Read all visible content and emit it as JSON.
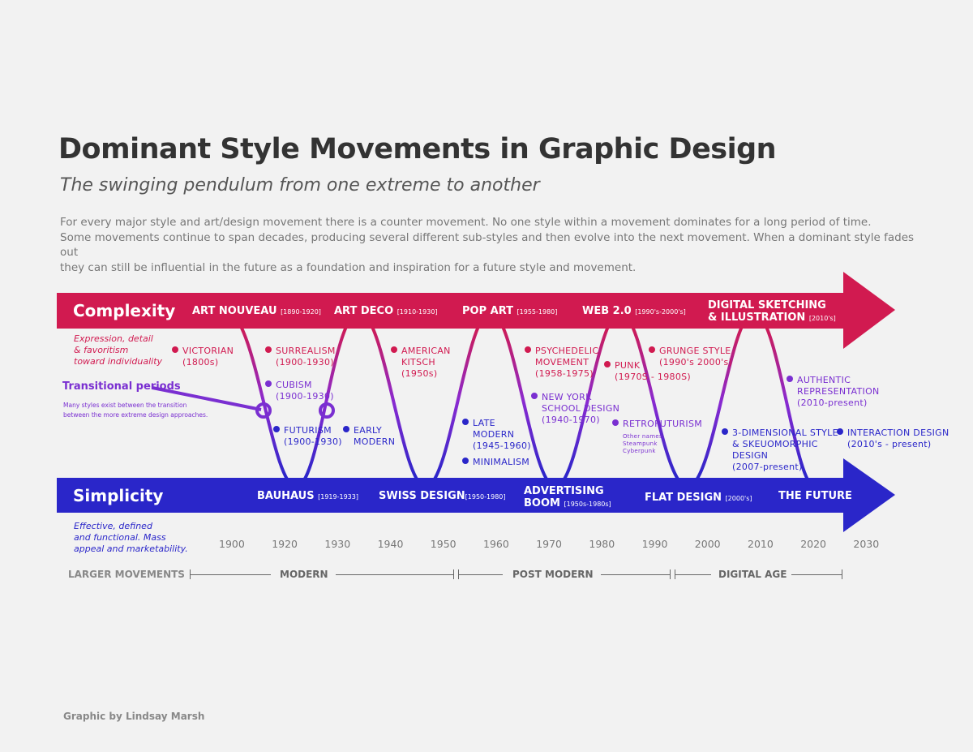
{
  "title": "Dominant Style Movements in Graphic Design",
  "subtitle": "The swinging pendulum from one extreme to another",
  "intro": [
    "For every major style and art/design movement there is a counter movement. No one style within a movement dominates for a long period of time.",
    "Some movements continue to span decades, producing several different sub-styles and then evolve into the next movement. When a dominant style fades out",
    "they can still be influential in the future as a foundation and inspiration for a future style and movement."
  ],
  "colors": {
    "complexity": "#d11a50",
    "simplicity": "#2a26c9",
    "transitional": "#7a2fd1",
    "background": "#f2f2f2"
  },
  "complexity": {
    "label": "Complexity",
    "desc": [
      "Expression, detail",
      "& favoritism",
      "toward individuality"
    ],
    "movements": [
      {
        "name": "ART NOUVEAU",
        "years": "[1890-1920]"
      },
      {
        "name": "ART DECO",
        "years": "[1910-1930]"
      },
      {
        "name": "POP ART",
        "years": "[1955-1980]"
      },
      {
        "name": "WEB 2.0",
        "years": "[1990's-2000's]"
      },
      {
        "name": "DIGITAL SKETCHING",
        "name2": "& ILLUSTRATION",
        "years": "[2010's]"
      }
    ]
  },
  "simplicity": {
    "label": "Simplicity",
    "desc": [
      "Effective, defined",
      "and functional. Mass",
      "appeal and marketability."
    ],
    "movements": [
      {
        "name": "BAUHAUS",
        "years": "[1919-1933]"
      },
      {
        "name": "SWISS DESIGN",
        "years": "[1950-1980]"
      },
      {
        "name": "ADVERTISING",
        "name2": "BOOM",
        "years": "[1950s-1980s]"
      },
      {
        "name": "FLAT DESIGN",
        "years": "[2000's]"
      },
      {
        "name": "THE FUTURE",
        "years": ""
      }
    ]
  },
  "transitional": {
    "label": "Transitional periods",
    "desc": [
      "Many styles exist between the transition",
      "between the more extreme design approaches."
    ]
  },
  "styles": [
    {
      "lines": [
        "VICTORIAN",
        "(1800s)"
      ],
      "tone": "red"
    },
    {
      "lines": [
        "SURREALISM",
        "(1900-1930)"
      ],
      "tone": "red"
    },
    {
      "lines": [
        "CUBISM",
        "(1900-1930)"
      ],
      "tone": "pur"
    },
    {
      "lines": [
        "FUTURISM",
        "(1900-1930)"
      ],
      "tone": "blu"
    },
    {
      "lines": [
        "EARLY",
        "MODERN"
      ],
      "tone": "blu"
    },
    {
      "lines": [
        "AMERICAN",
        "KITSCH",
        "(1950s)"
      ],
      "tone": "red"
    },
    {
      "lines": [
        "LATE",
        "MODERN",
        "(1945-1960)"
      ],
      "tone": "blu"
    },
    {
      "lines": [
        "MINIMALISM"
      ],
      "tone": "blu"
    },
    {
      "lines": [
        "PSYCHEDELIC",
        "MOVEMENT",
        "(1958-1975)"
      ],
      "tone": "red"
    },
    {
      "lines": [
        "NEW YORK",
        "SCHOOL DESIGN",
        "(1940-1970)"
      ],
      "tone": "pur"
    },
    {
      "lines": [
        "PUNK",
        "(1970S - 1980S)"
      ],
      "tone": "red"
    },
    {
      "lines": [
        "GRUNGE STYLE",
        "(1990's 2000's)"
      ],
      "tone": "red"
    },
    {
      "lines": [
        "RETROFUTURISM"
      ],
      "tone": "pur",
      "sub": [
        "Other names:",
        "Steampunk",
        "Cyberpunk"
      ]
    },
    {
      "lines": [
        "AUTHENTIC",
        "REPRESENTATION",
        "(2010-present)"
      ],
      "tone": "pur"
    },
    {
      "lines": [
        "3-DIMENSIONAL STYLE",
        "& SKEUOMORPHIC",
        "DESIGN",
        "(2007-present)"
      ],
      "tone": "blu"
    },
    {
      "lines": [
        "INTERACTION DESIGN",
        "(2010's - present)"
      ],
      "tone": "blu"
    }
  ],
  "years": [
    "1900",
    "1920",
    "1930",
    "1940",
    "1950",
    "1960",
    "1970",
    "1980",
    "1990",
    "2000",
    "2010",
    "2020",
    "2030"
  ],
  "larger_movements": {
    "label": "LARGER MOVEMENTS",
    "items": [
      "MODERN",
      "POST MODERN",
      "DIGITAL AGE"
    ]
  },
  "credit": "Graphic by Lindsay Marsh"
}
